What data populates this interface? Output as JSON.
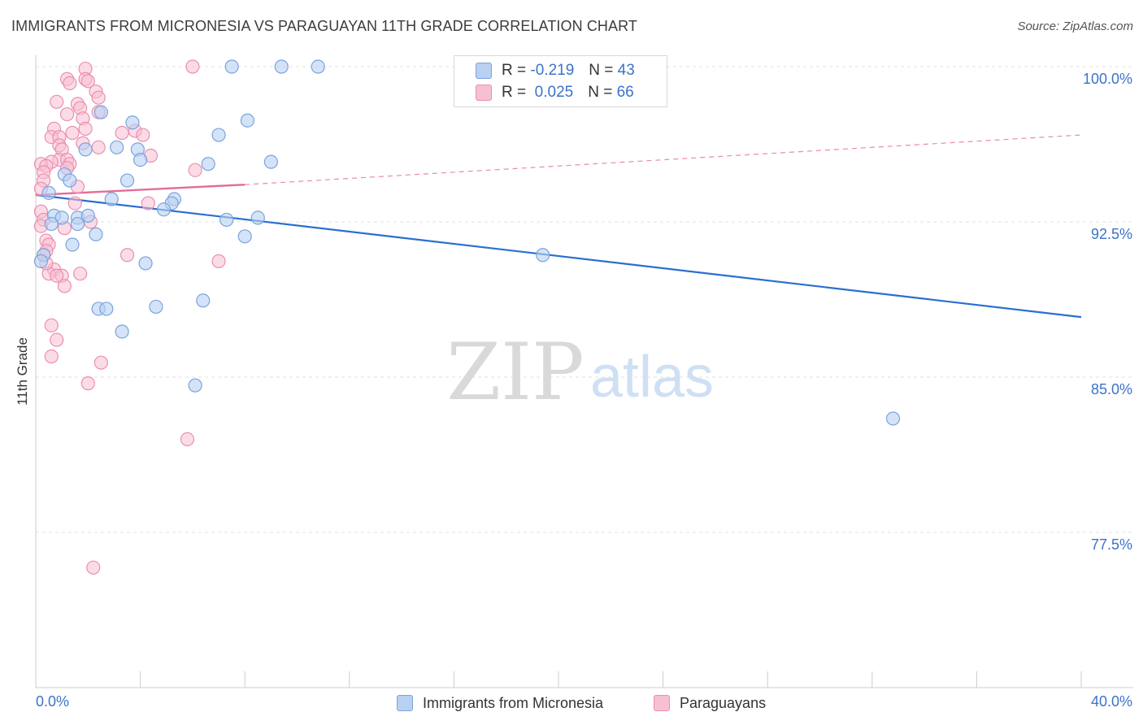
{
  "title": "IMMIGRANTS FROM MICRONESIA VS PARAGUAYAN 11TH GRADE CORRELATION CHART",
  "source": "Source: ZipAtlas.com",
  "watermark": {
    "zip": "ZIP",
    "atlas": "atlas"
  },
  "legend": {
    "blue": {
      "r_label": "R =",
      "r_value": "-0.219",
      "n_label": "N =",
      "n_value": "43"
    },
    "pink": {
      "r_label": "R =",
      "r_value": "0.025",
      "n_label": "N =",
      "n_value": "66"
    }
  },
  "colors": {
    "blue_fill": "#b8d0f2",
    "blue_stroke": "#7aa3de",
    "blue_line": "#2a6fcf",
    "pink_fill": "#f7bfd2",
    "pink_stroke": "#ea8fb0",
    "pink_line": "#e56b98",
    "tick_label": "#3b73c9",
    "grid": "#e2e2e2"
  },
  "chart_data": {
    "type": "scatter",
    "title": "IMMIGRANTS FROM MICRONESIA VS PARAGUAYAN 11TH GRADE CORRELATION CHART",
    "xlabel": "",
    "ylabel": "11th Grade",
    "xlim": [
      0,
      40
    ],
    "ylim": [
      71.0,
      101.5
    ],
    "x_tick_labels": [
      {
        "value": 0,
        "label": "0.0%"
      },
      {
        "value": 40,
        "label": "40.0%"
      }
    ],
    "x_minor_ticks": [
      0,
      4,
      8,
      12,
      16,
      20,
      24,
      28,
      32,
      36,
      40
    ],
    "y_ticks": [
      {
        "value": 100.0,
        "label": "100.0%"
      },
      {
        "value": 92.5,
        "label": "92.5%"
      },
      {
        "value": 85.0,
        "label": "85.0%"
      },
      {
        "value": 77.5,
        "label": "77.5%"
      }
    ],
    "series": [
      {
        "name": "Immigrants from Micronesia",
        "color": "blue",
        "r": -0.219,
        "n": 43,
        "trend": {
          "x0": 0.0,
          "y0": 93.8,
          "x1": 40.0,
          "y1": 87.9,
          "style": "solid"
        },
        "points": [
          [
            7.5,
            100.0
          ],
          [
            9.4,
            100.0
          ],
          [
            10.8,
            100.0
          ],
          [
            2.5,
            97.8
          ],
          [
            3.7,
            97.3
          ],
          [
            8.1,
            97.4
          ],
          [
            7.0,
            96.7
          ],
          [
            1.9,
            96.0
          ],
          [
            3.1,
            96.1
          ],
          [
            3.9,
            96.0
          ],
          [
            4.0,
            95.5
          ],
          [
            6.6,
            95.3
          ],
          [
            9.0,
            95.4
          ],
          [
            1.1,
            94.8
          ],
          [
            1.3,
            94.5
          ],
          [
            3.5,
            94.5
          ],
          [
            0.5,
            93.9
          ],
          [
            2.9,
            93.6
          ],
          [
            5.3,
            93.6
          ],
          [
            5.2,
            93.4
          ],
          [
            0.7,
            92.8
          ],
          [
            1.0,
            92.7
          ],
          [
            4.9,
            93.1
          ],
          [
            1.6,
            92.7
          ],
          [
            2.0,
            92.8
          ],
          [
            0.6,
            92.4
          ],
          [
            1.6,
            92.4
          ],
          [
            7.3,
            92.6
          ],
          [
            8.5,
            92.7
          ],
          [
            2.3,
            91.9
          ],
          [
            8.0,
            91.8
          ],
          [
            1.4,
            91.4
          ],
          [
            0.3,
            90.9
          ],
          [
            19.4,
            90.9
          ],
          [
            4.2,
            90.5
          ],
          [
            2.4,
            88.3
          ],
          [
            2.7,
            88.3
          ],
          [
            4.6,
            88.4
          ],
          [
            6.4,
            88.7
          ],
          [
            3.3,
            87.2
          ],
          [
            6.1,
            84.6
          ],
          [
            0.2,
            90.6
          ],
          [
            32.8,
            83.0
          ]
        ]
      },
      {
        "name": "Paraguayans",
        "color": "pink",
        "r": 0.025,
        "n": 66,
        "trend_solid": {
          "x0": 0.0,
          "y0": 93.8,
          "x1": 8.0,
          "y1": 94.3
        },
        "trend_dashed": {
          "x0": 8.0,
          "y0": 94.3,
          "x1": 40.0,
          "y1": 96.7
        },
        "points": [
          [
            6.0,
            100.0
          ],
          [
            1.9,
            99.9
          ],
          [
            1.2,
            99.4
          ],
          [
            1.9,
            99.4
          ],
          [
            2.0,
            99.3
          ],
          [
            1.3,
            99.2
          ],
          [
            2.3,
            98.8
          ],
          [
            2.4,
            98.5
          ],
          [
            0.8,
            98.3
          ],
          [
            1.6,
            98.2
          ],
          [
            1.7,
            98.0
          ],
          [
            2.4,
            97.8
          ],
          [
            1.2,
            97.7
          ],
          [
            1.8,
            97.5
          ],
          [
            0.7,
            97.0
          ],
          [
            1.9,
            97.0
          ],
          [
            3.8,
            96.9
          ],
          [
            4.1,
            96.7
          ],
          [
            1.4,
            96.8
          ],
          [
            3.3,
            96.8
          ],
          [
            0.6,
            96.6
          ],
          [
            0.9,
            96.6
          ],
          [
            1.8,
            96.3
          ],
          [
            0.9,
            96.2
          ],
          [
            1.0,
            96.0
          ],
          [
            2.4,
            96.1
          ],
          [
            4.4,
            95.7
          ],
          [
            0.9,
            95.5
          ],
          [
            0.6,
            95.4
          ],
          [
            0.2,
            95.3
          ],
          [
            1.2,
            95.5
          ],
          [
            1.3,
            95.3
          ],
          [
            0.4,
            95.2
          ],
          [
            1.2,
            95.1
          ],
          [
            6.1,
            95.0
          ],
          [
            0.3,
            94.9
          ],
          [
            0.3,
            94.5
          ],
          [
            1.6,
            94.2
          ],
          [
            0.2,
            94.1
          ],
          [
            1.5,
            93.4
          ],
          [
            4.3,
            93.4
          ],
          [
            0.2,
            93.0
          ],
          [
            0.3,
            92.6
          ],
          [
            2.1,
            92.5
          ],
          [
            1.1,
            92.2
          ],
          [
            0.4,
            91.6
          ],
          [
            0.5,
            91.4
          ],
          [
            0.4,
            91.1
          ],
          [
            0.3,
            90.9
          ],
          [
            3.5,
            90.9
          ],
          [
            7.0,
            90.6
          ],
          [
            0.7,
            90.2
          ],
          [
            0.5,
            90.0
          ],
          [
            1.0,
            89.9
          ],
          [
            0.8,
            89.9
          ],
          [
            1.7,
            90.0
          ],
          [
            1.1,
            89.4
          ],
          [
            0.6,
            87.5
          ],
          [
            0.8,
            86.8
          ],
          [
            0.6,
            86.0
          ],
          [
            2.5,
            85.7
          ],
          [
            2.0,
            84.7
          ],
          [
            5.8,
            82.0
          ],
          [
            2.2,
            75.8
          ],
          [
            0.2,
            92.3
          ],
          [
            0.4,
            90.5
          ]
        ]
      }
    ]
  },
  "bottom_legend": [
    {
      "label": "Immigrants from Micronesia",
      "color": "blue"
    },
    {
      "label": "Paraguayans",
      "color": "pink"
    }
  ]
}
